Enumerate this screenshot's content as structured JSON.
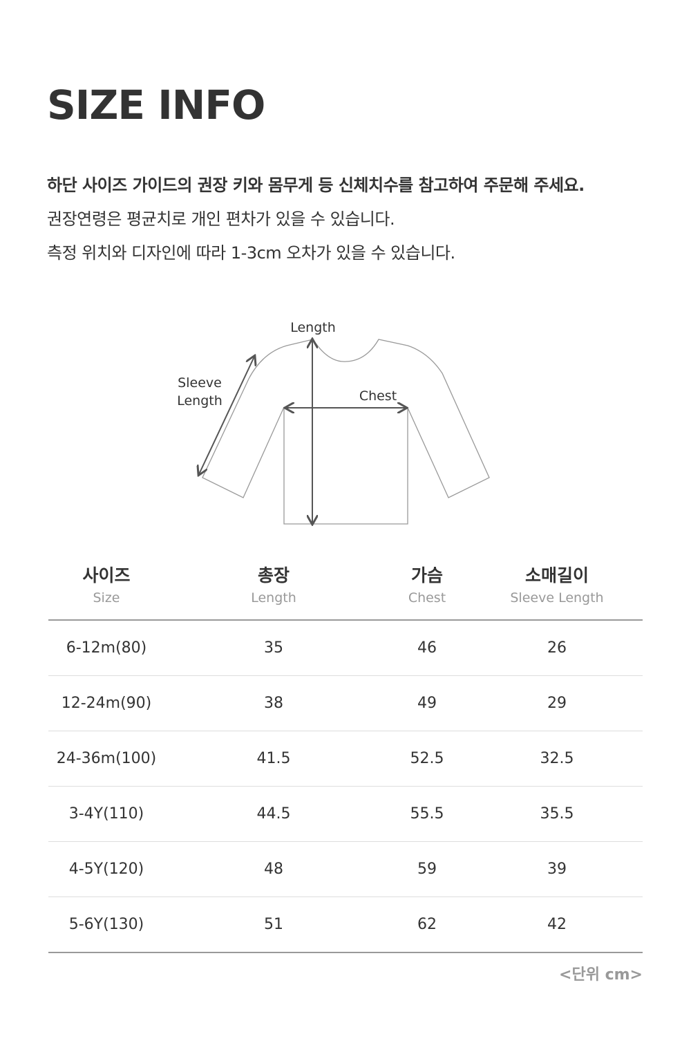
{
  "title": "SIZE INFO",
  "notes": [
    "하단 사이즈 가이드의 권장 키와 몸무게 등 신체치수를 참고하여 주문해 주세요.",
    "권장연령은 평균치로 개인 편차가 있을 수 있습니다.",
    "측정 위치와 디자인에 따라 1-3cm 오차가 있을 수 있습니다."
  ],
  "diagram": {
    "length_label": "Length",
    "sleeve_label_1": "Sleeve",
    "sleeve_label_2": "Length",
    "chest_label": "Chest"
  },
  "table": {
    "headers": [
      {
        "ko": "사이즈",
        "en": "Size"
      },
      {
        "ko": "총장",
        "en": "Length"
      },
      {
        "ko": "가슴",
        "en": "Chest"
      },
      {
        "ko": "소매길이",
        "en": "Sleeve Length"
      }
    ],
    "rows": [
      [
        "6-12m(80)",
        "35",
        "46",
        "26"
      ],
      [
        "12-24m(90)",
        "38",
        "49",
        "29"
      ],
      [
        "24-36m(100)",
        "41.5",
        "52.5",
        "32.5"
      ],
      [
        "3-4Y(110)",
        "44.5",
        "55.5",
        "35.5"
      ],
      [
        "4-5Y(120)",
        "48",
        "59",
        "39"
      ],
      [
        "5-6Y(130)",
        "51",
        "62",
        "42"
      ]
    ]
  },
  "unit_note": "<단위 cm>"
}
